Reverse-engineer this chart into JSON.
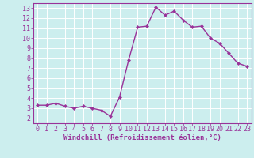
{
  "x": [
    0,
    1,
    2,
    3,
    4,
    5,
    6,
    7,
    8,
    9,
    10,
    11,
    12,
    13,
    14,
    15,
    16,
    17,
    18,
    19,
    20,
    21,
    22,
    23
  ],
  "y": [
    3.3,
    3.3,
    3.5,
    3.2,
    3.0,
    3.2,
    3.0,
    2.8,
    2.2,
    4.1,
    7.8,
    11.1,
    11.2,
    13.1,
    12.3,
    12.7,
    11.8,
    11.1,
    11.2,
    10.0,
    9.5,
    8.5,
    7.5,
    7.2
  ],
  "line_color": "#993399",
  "marker": "D",
  "marker_size": 2.0,
  "background_color": "#cceeee",
  "grid_color": "#aadddd",
  "xlabel": "Windchill (Refroidissement éolien,°C)",
  "xlim": [
    -0.5,
    23.5
  ],
  "ylim": [
    1.5,
    13.5
  ],
  "xticks": [
    0,
    1,
    2,
    3,
    4,
    5,
    6,
    7,
    8,
    9,
    10,
    11,
    12,
    13,
    14,
    15,
    16,
    17,
    18,
    19,
    20,
    21,
    22,
    23
  ],
  "yticks": [
    2,
    3,
    4,
    5,
    6,
    7,
    8,
    9,
    10,
    11,
    12,
    13
  ],
  "xlabel_fontsize": 6.5,
  "tick_fontsize": 6.0,
  "line_width": 1.0,
  "spine_color": "#993399",
  "axis_bg": "#cceeee"
}
